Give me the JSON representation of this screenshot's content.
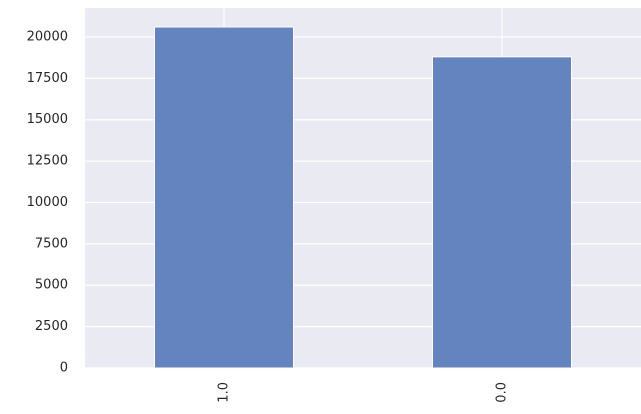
{
  "chart_data": {
    "type": "bar",
    "categories": [
      "1.0",
      "0.0"
    ],
    "values": [
      20600,
      18800
    ],
    "color": "#6384be",
    "ylim": [
      0,
      21750
    ],
    "yticks": [
      0,
      2500,
      5000,
      7500,
      10000,
      12500,
      15000,
      17500,
      20000
    ],
    "grid": true
  }
}
